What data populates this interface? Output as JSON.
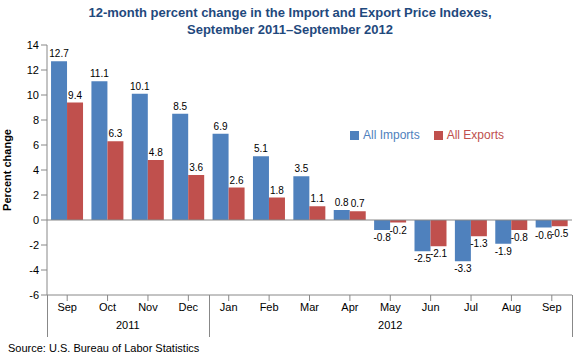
{
  "chart_data": {
    "type": "bar",
    "title": "12-month percent change in the Import and Export Price Indexes,\nSeptember 2011–September 2012",
    "y_label": "Percent change",
    "source": "Source: U.S. Bureau of Labor Statistics",
    "categories": [
      "Sep",
      "Oct",
      "Nov",
      "Dec",
      "Jan",
      "Feb",
      "Mar",
      "Apr",
      "May",
      "Jun",
      "Jul",
      "Aug",
      "Sep"
    ],
    "category_groups": [
      {
        "label": "2011",
        "categories": [
          "Sep",
          "Oct",
          "Nov",
          "Dec"
        ]
      },
      {
        "label": "2012",
        "categories": [
          "Jan",
          "Feb",
          "Mar",
          "Apr",
          "May",
          "Jun",
          "Jul",
          "Aug",
          "Sep"
        ]
      }
    ],
    "series": [
      {
        "name": "All Imports",
        "color": "#4f81bd",
        "values": [
          12.7,
          11.1,
          10.1,
          8.5,
          6.9,
          5.1,
          3.5,
          0.8,
          -0.8,
          -2.5,
          -3.3,
          -1.9,
          -0.6
        ]
      },
      {
        "name": "All Exports",
        "color": "#c0504d",
        "values": [
          9.4,
          6.3,
          4.8,
          3.6,
          2.6,
          1.8,
          1.1,
          0.7,
          -0.2,
          -2.1,
          -1.3,
          -0.8,
          -0.5
        ]
      }
    ],
    "ylim": [
      -6,
      14
    ],
    "yticks": [
      -6,
      -4,
      -2,
      0,
      2,
      4,
      6,
      8,
      10,
      12,
      14
    ],
    "grid": false,
    "data_labels": true,
    "legend": "upper right"
  }
}
